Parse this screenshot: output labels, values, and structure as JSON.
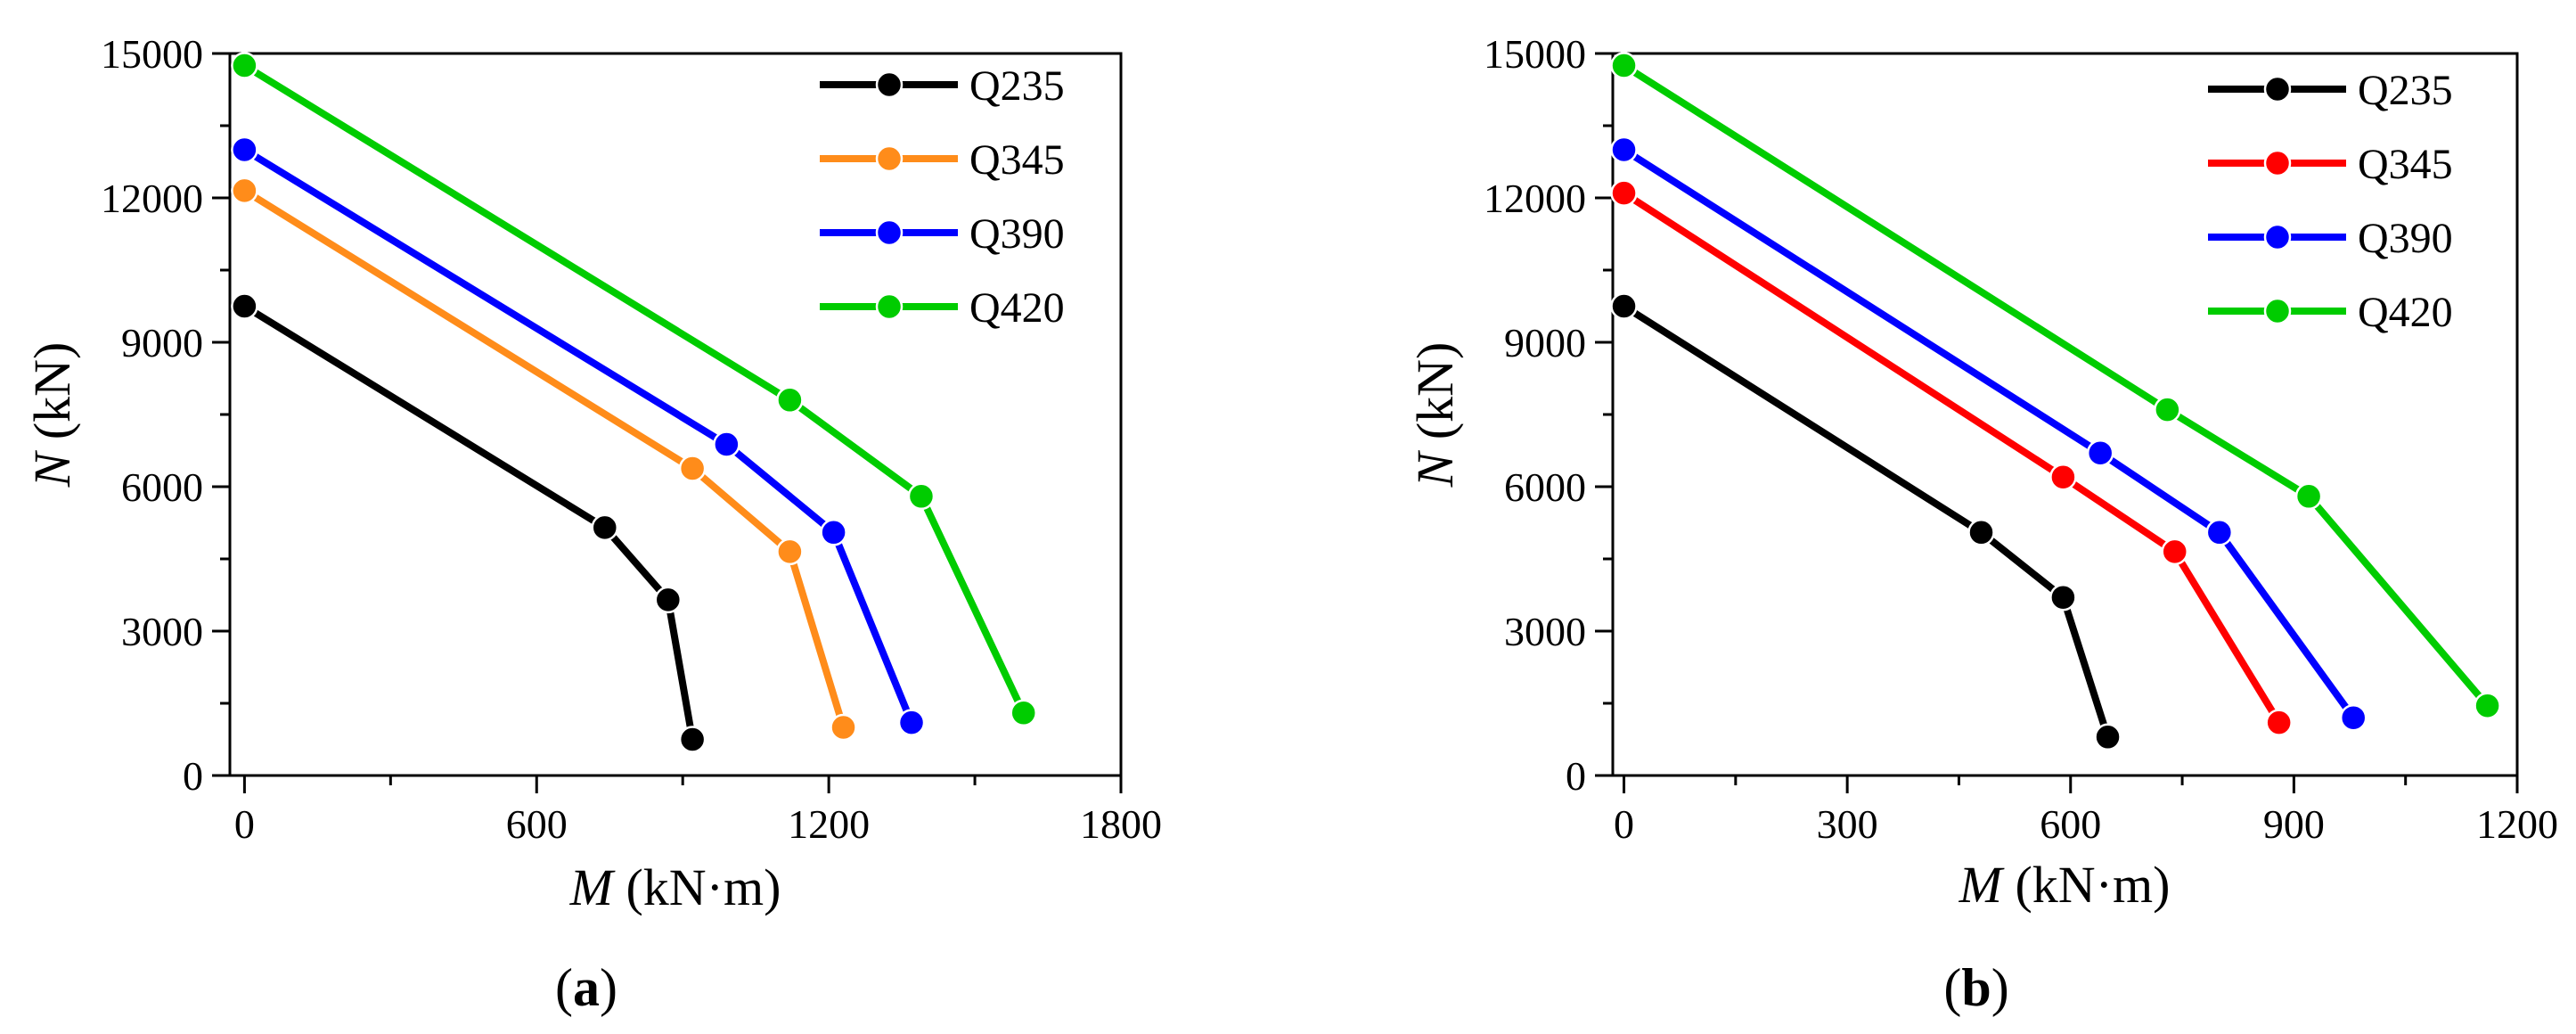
{
  "chart_data": [
    {
      "type": "line",
      "panel": "a",
      "caption": {
        "open": "(",
        "letter": "a",
        "close": ")"
      },
      "xlabel": {
        "symbol": "M",
        "unit": " (kN·m)"
      },
      "ylabel": {
        "symbol": "N",
        "unit": " (kN)"
      },
      "xlim": [
        -30,
        1800
      ],
      "ylim": [
        0,
        15000
      ],
      "xticks": [
        0,
        600,
        1200,
        1800
      ],
      "xticks_minor": [
        300,
        900,
        1500
      ],
      "yticks": [
        0,
        3000,
        6000,
        9000,
        12000,
        15000
      ],
      "yticks_minor": [
        1500,
        4500,
        7500,
        10500,
        13500
      ],
      "legend": "top-right",
      "series": [
        {
          "name": "Q235",
          "color": "#000000",
          "points": [
            [
              0,
              9750
            ],
            [
              740,
              5150
            ],
            [
              870,
              3650
            ],
            [
              920,
              750
            ]
          ]
        },
        {
          "name": "Q345",
          "color": "#ff8c1a",
          "points": [
            [
              0,
              12150
            ],
            [
              920,
              6380
            ],
            [
              1120,
              4650
            ],
            [
              1230,
              1000
            ]
          ]
        },
        {
          "name": "Q390",
          "color": "#0000ff",
          "points": [
            [
              0,
              13000
            ],
            [
              990,
              6880
            ],
            [
              1210,
              5050
            ],
            [
              1370,
              1100
            ]
          ]
        },
        {
          "name": "Q420",
          "color": "#00cc00",
          "points": [
            [
              0,
              14750
            ],
            [
              1120,
              7800
            ],
            [
              1390,
              5800
            ],
            [
              1600,
              1300
            ]
          ]
        }
      ]
    },
    {
      "type": "line",
      "panel": "b",
      "caption": {
        "open": "(",
        "letter": "b",
        "close": ")"
      },
      "xlabel": {
        "symbol": "M",
        "unit": " (kN·m)"
      },
      "ylabel": {
        "symbol": "N",
        "unit": " (kN)"
      },
      "xlim": [
        -15,
        1200
      ],
      "ylim": [
        0,
        15000
      ],
      "xticks": [
        0,
        300,
        600,
        900,
        1200
      ],
      "xticks_minor": [
        150,
        450,
        750,
        1050
      ],
      "yticks": [
        0,
        3000,
        6000,
        9000,
        12000,
        15000
      ],
      "yticks_minor": [
        1500,
        4500,
        7500,
        10500,
        13500
      ],
      "legend": "top-right",
      "series": [
        {
          "name": "Q235",
          "color": "#000000",
          "points": [
            [
              0,
              9750
            ],
            [
              480,
              5050
            ],
            [
              590,
              3700
            ],
            [
              650,
              800
            ]
          ]
        },
        {
          "name": "Q345",
          "color": "#ff0000",
          "points": [
            [
              0,
              12100
            ],
            [
              590,
              6200
            ],
            [
              740,
              4650
            ],
            [
              880,
              1100
            ]
          ]
        },
        {
          "name": "Q390",
          "color": "#0000ff",
          "points": [
            [
              0,
              13000
            ],
            [
              640,
              6700
            ],
            [
              800,
              5050
            ],
            [
              980,
              1200
            ]
          ]
        },
        {
          "name": "Q420",
          "color": "#00cc00",
          "points": [
            [
              0,
              14750
            ],
            [
              730,
              7600
            ],
            [
              920,
              5800
            ],
            [
              1160,
              1450
            ]
          ]
        }
      ]
    }
  ]
}
